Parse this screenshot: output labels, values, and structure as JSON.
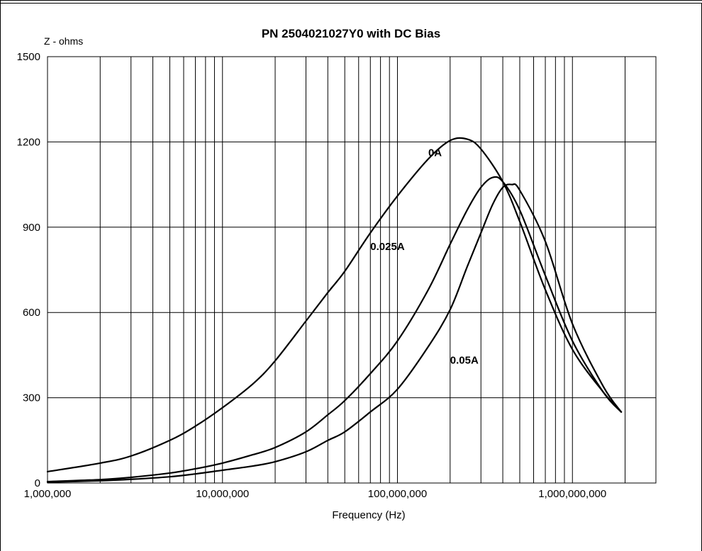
{
  "chart_data": {
    "type": "line",
    "title": "PN 2504021027Y0 with DC Bias",
    "xlabel": "Frequency (Hz)",
    "ylabel": "Z - ohms",
    "xscale": "log",
    "xlim": [
      1000000,
      3000000000
    ],
    "ylim": [
      0,
      1500
    ],
    "grid": true,
    "y_ticks": [
      "0",
      "300",
      "600",
      "900",
      "1200",
      "1500"
    ],
    "x_ticks": [
      "1,000,000",
      "10,000,000",
      "100,000,000",
      "1,000,000,000"
    ],
    "series": [
      {
        "name": "0A",
        "x": [
          1000000,
          2000000,
          3000000,
          5000000,
          7000000,
          10000000,
          15000000,
          20000000,
          30000000,
          40000000,
          50000000,
          70000000,
          100000000,
          150000000,
          200000000,
          250000000,
          300000000,
          400000000,
          500000000,
          700000000,
          1000000000,
          1500000000,
          1900000000
        ],
        "y": [
          40,
          70,
          95,
          150,
          200,
          265,
          350,
          430,
          570,
          670,
          745,
          880,
          1010,
          1140,
          1205,
          1210,
          1175,
          1060,
          920,
          680,
          470,
          320,
          250
        ]
      },
      {
        "name": "0.025A",
        "x": [
          1000000,
          2000000,
          3000000,
          5000000,
          7000000,
          10000000,
          15000000,
          20000000,
          30000000,
          40000000,
          50000000,
          70000000,
          100000000,
          150000000,
          200000000,
          250000000,
          300000000,
          350000000,
          400000000,
          500000000,
          700000000,
          1000000000,
          1500000000,
          1900000000
        ],
        "y": [
          5,
          12,
          20,
          35,
          50,
          70,
          100,
          125,
          180,
          240,
          290,
          385,
          500,
          680,
          840,
          960,
          1040,
          1075,
          1060,
          960,
          730,
          500,
          320,
          250
        ]
      },
      {
        "name": "0.05A",
        "x": [
          1000000,
          2000000,
          3000000,
          5000000,
          7000000,
          10000000,
          15000000,
          20000000,
          30000000,
          40000000,
          50000000,
          70000000,
          100000000,
          150000000,
          200000000,
          250000000,
          300000000,
          350000000,
          400000000,
          450000000,
          500000000,
          700000000,
          1000000000,
          1500000000,
          1900000000
        ],
        "y": [
          3,
          8,
          13,
          22,
          32,
          45,
          60,
          75,
          110,
          150,
          180,
          250,
          330,
          480,
          610,
          760,
          880,
          980,
          1040,
          1050,
          1030,
          850,
          560,
          340,
          250
        ]
      }
    ],
    "annotations": [
      {
        "text": "0A",
        "x": 150000000,
        "y": 1150
      },
      {
        "text": "0.025A",
        "x": 70000000,
        "y": 820
      },
      {
        "text": "0.05A",
        "x": 200000000,
        "y": 420
      }
    ]
  }
}
